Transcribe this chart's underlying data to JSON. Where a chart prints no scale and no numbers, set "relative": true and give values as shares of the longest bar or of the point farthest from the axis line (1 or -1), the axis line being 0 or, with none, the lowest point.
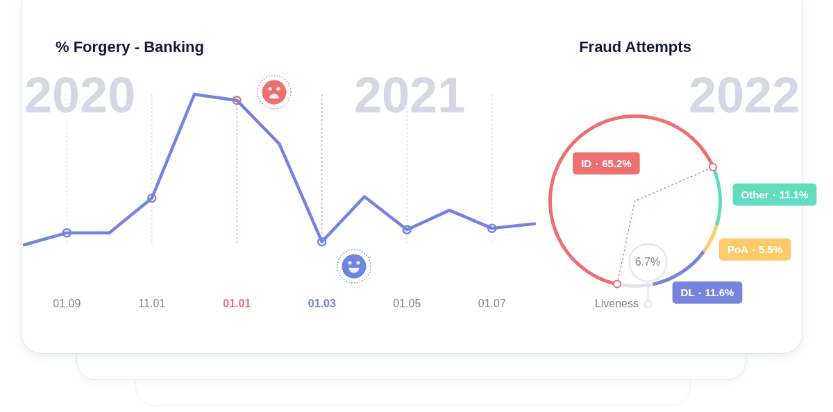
{
  "chart_data": [
    {
      "type": "line",
      "title": "% Forgery - Banking",
      "relative": true,
      "categories": [
        null,
        "01.09",
        null,
        "11.01",
        null,
        "01.01",
        null,
        "01.03",
        null,
        "01.05",
        null,
        "01.07",
        null
      ],
      "series": [
        {
          "type": "line",
          "marker": "none",
          "color": "#7185e0",
          "values": [
            0,
            0.08,
            0.08,
            0.31,
            1,
            0.96,
            0.67,
            0.02,
            0.32,
            0.1,
            0.23,
            0.11,
            0.14
          ]
        },
        {
          "type": "scatter",
          "colors": [
            null,
            "#6c85e2",
            null,
            "#8b84d4",
            null,
            "#ec7070",
            null,
            "#6d84e0",
            null,
            "#7086e0",
            null,
            "#7086e0",
            null
          ],
          "values": [
            null,
            0.08,
            null,
            0.31,
            null,
            0.96,
            null,
            0.02,
            null,
            0.1,
            null,
            0.11,
            null
          ]
        }
      ],
      "marker": "circle",
      "ref_lines": [
        {
          "axis": "x",
          "value": "01.01",
          "color": "#f29494",
          "line_style": "dashed"
        },
        {
          "axis": "x",
          "value": "01.03",
          "color": "#97a6ec",
          "line_style": "dashed"
        },
        {
          "axis": "x",
          "value": "01.09",
          "color": "#d6dae6",
          "line_style": "dashed"
        },
        {
          "axis": "x",
          "value": "11.01",
          "color": "#d6dae6",
          "line_style": "dashed"
        },
        {
          "axis": "x",
          "value": "01.05",
          "color": "#d6dae6",
          "line_style": "dashed"
        },
        {
          "axis": "x",
          "value": "01.07",
          "color": "#d6dae6",
          "line_style": "dashed"
        }
      ],
      "annotations": [
        "2020",
        "2021"
      ]
    },
    {
      "type": "donut",
      "title": "Fraud Attempts",
      "categories": [
        "ID",
        "Other",
        "PoA",
        "DL",
        "Liveness"
      ],
      "values": [
        65.2,
        11.1,
        5.5,
        11.6,
        6.7
      ],
      "colors": [
        "#ec7070",
        "#61dcbe",
        "#fecb6b",
        "#7784dc",
        "#dfe5ee"
      ],
      "value_labels": [
        "65.2%",
        "11.1%",
        "5.5%",
        "11.6%",
        "6.7%"
      ],
      "annotations": [
        "2022"
      ]
    }
  ]
}
